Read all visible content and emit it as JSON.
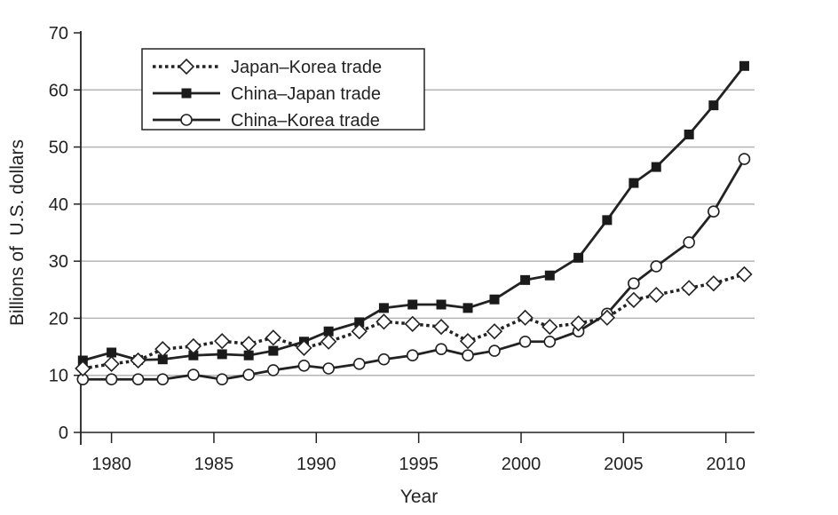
{
  "chart_data": {
    "type": "line",
    "title": "",
    "xlabel": "Year",
    "ylabel": "Billions of  U.S. dollars",
    "xlim": [
      1978.5,
      2011.4
    ],
    "ylim": [
      0,
      70
    ],
    "xticks": [
      1980,
      1985,
      1990,
      1995,
      2000,
      2005,
      2010
    ],
    "yticks": [
      0,
      10,
      20,
      30,
      40,
      50,
      60,
      70
    ],
    "grid": "horizontal",
    "legend": "top-left",
    "x": [
      1978.6,
      1980.0,
      1981.3,
      1982.5,
      1984.0,
      1985.4,
      1986.7,
      1987.9,
      1989.4,
      1990.6,
      1992.1,
      1993.3,
      1994.7,
      1996.1,
      1997.4,
      1998.7,
      2000.2,
      2001.4,
      2002.8,
      2004.2,
      2005.5,
      2006.6,
      2008.2,
      2009.4,
      2010.9
    ],
    "series": [
      {
        "name": "Japan–Korea trade",
        "marker": "diamond-open",
        "dash": "dotted",
        "color": "#222222",
        "values": [
          11.2,
          12.0,
          12.6,
          14.6,
          15.1,
          16.0,
          15.5,
          16.6,
          14.8,
          15.9,
          17.7,
          19.4,
          19.0,
          18.5,
          16.0,
          17.7,
          20.1,
          18.5,
          19.1,
          20.1,
          23.2,
          24.1,
          25.3,
          26.1,
          27.7
        ]
      },
      {
        "name": "China–Japan trade",
        "marker": "square-filled",
        "dash": "solid",
        "color": "#222222",
        "values": [
          12.6,
          14.0,
          12.7,
          12.8,
          13.5,
          13.7,
          13.5,
          14.3,
          15.9,
          17.7,
          19.3,
          21.8,
          22.4,
          22.4,
          21.8,
          23.3,
          26.7,
          27.5,
          30.6,
          37.2,
          43.7,
          46.5,
          52.2,
          57.3,
          64.2
        ]
      },
      {
        "name": "China–Korea trade",
        "marker": "circle-open",
        "dash": "solid",
        "color": "#222222",
        "values": [
          9.3,
          9.3,
          9.3,
          9.3,
          10.1,
          9.3,
          10.1,
          10.9,
          11.7,
          11.2,
          12.0,
          12.8,
          13.5,
          14.6,
          13.5,
          14.3,
          15.9,
          15.9,
          17.7,
          20.8,
          26.1,
          29.1,
          33.3,
          38.7,
          47.9
        ]
      }
    ]
  }
}
